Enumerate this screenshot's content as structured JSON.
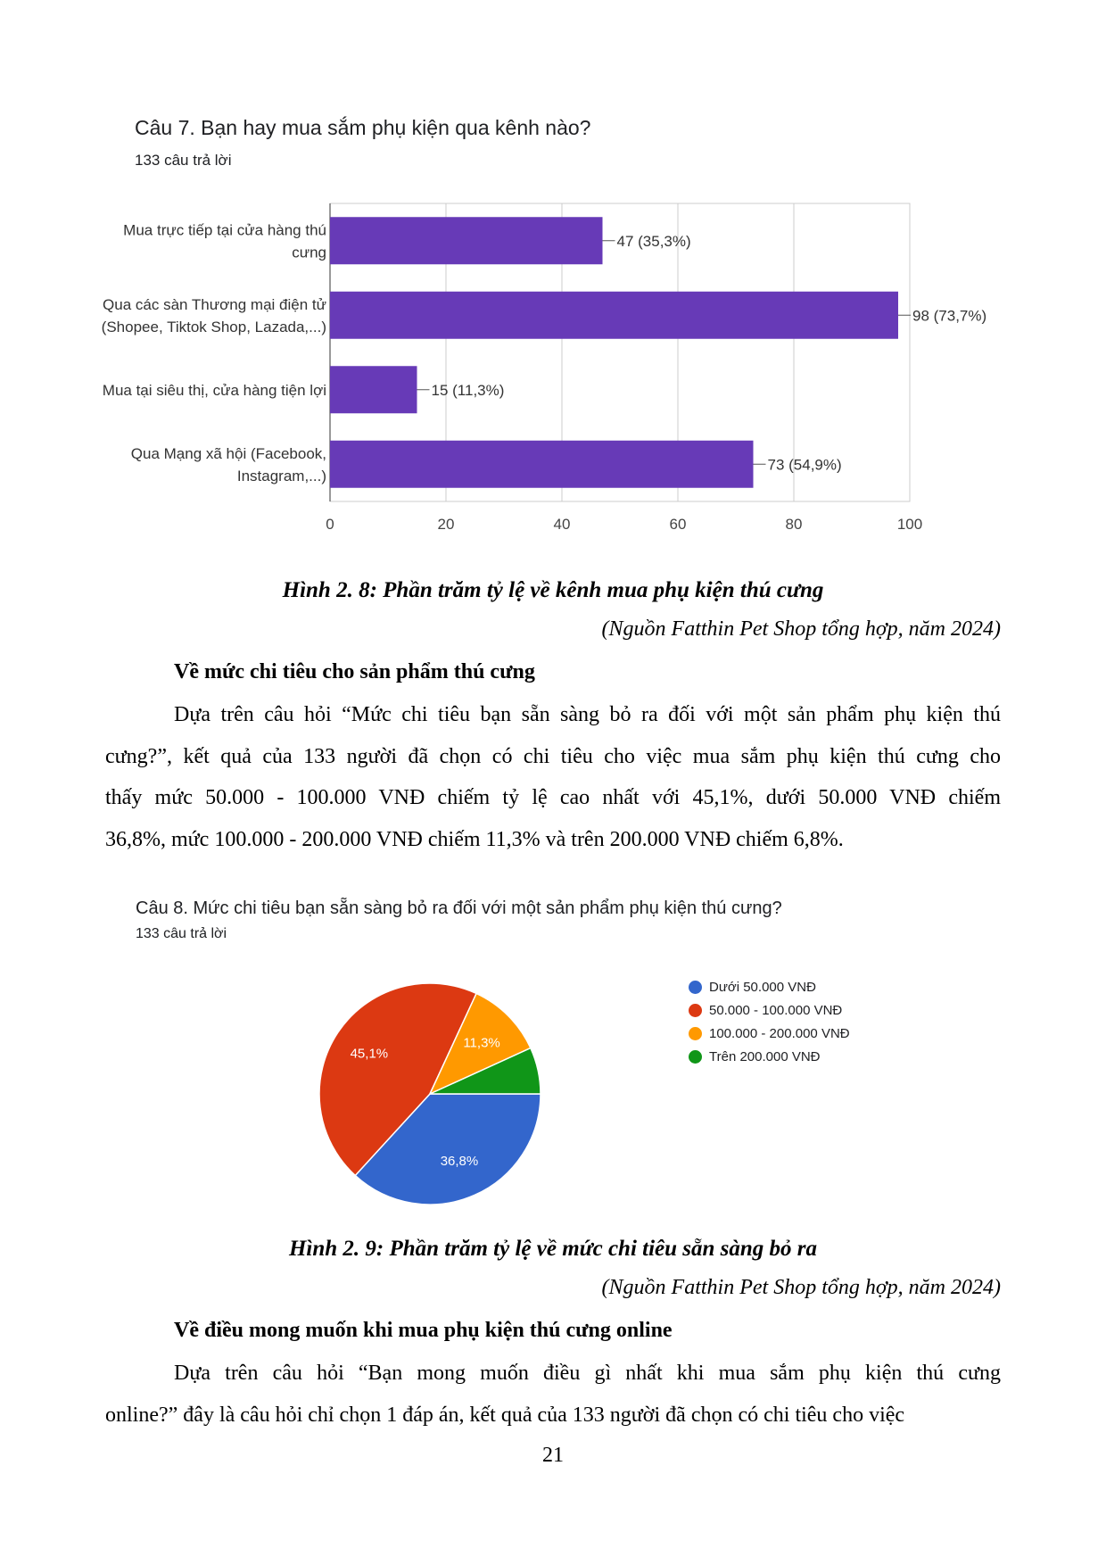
{
  "chart1": {
    "title": "Câu 7. Bạn hay mua sắm phụ kiện qua kênh nào?",
    "subtitle": "133 câu trả lời",
    "chart_data": {
      "type": "bar",
      "orientation": "horizontal",
      "categories": [
        [
          "Mua trực tiếp tại cửa hàng thú",
          "cưng"
        ],
        [
          "Qua các sàn Thương mại điện tử",
          "(Shopee, Tiktok Shop, Lazada,...)"
        ],
        [
          "Mua tại siêu thị, cửa hàng tiện lợi"
        ],
        [
          "Qua Mạng xã hội (Facebook,",
          "Instagram,...)"
        ]
      ],
      "values": [
        47,
        98,
        15,
        73
      ],
      "data_labels": [
        "47 (35,3%)",
        "98 (73,7%)",
        "15 (11,3%)",
        "73 (54,9%)"
      ],
      "xlim": [
        0,
        100
      ],
      "xticks": [
        "0",
        "20",
        "40",
        "60",
        "80",
        "100"
      ],
      "bar_color": "#673ab7",
      "grid": true
    }
  },
  "caption1": "Hình 2. 8: Phần trăm tỷ lệ về kênh mua phụ kiện thú cưng",
  "source1": "(Nguồn Fatthin Pet Shop tổng hợp, năm 2024)",
  "heading1": "Về mức chi tiêu cho sản phẩm thú cưng",
  "para1": [
    "Dựa trên câu hỏi “Mức chi tiêu bạn sẵn sàng bỏ ra đối với một sản phẩm phụ kiện thú",
    "cưng?”, kết quả của 133 người đã chọn có chi tiêu cho việc mua sắm phụ kiện thú cưng cho",
    "thấy mức 50.000 - 100.000 VNĐ chiếm tỷ lệ cao nhất với 45,1%, dưới 50.000 VNĐ chiếm",
    "36,8%, mức 100.000 - 200.000 VNĐ chiếm 11,3% và trên 200.000 VNĐ chiếm 6,8%."
  ],
  "chart2": {
    "title": "Câu 8. Mức chi tiêu bạn sẵn sàng bỏ ra đối với một sản phẩm phụ kiện thú cưng?",
    "subtitle": "133 câu trả lời",
    "chart_data": {
      "type": "pie",
      "slices": [
        {
          "label": "Dưới 50.000 VNĐ",
          "value": 36.8,
          "display": "36,8%",
          "color": "#3366cc"
        },
        {
          "label": "50.000 - 100.000 VNĐ",
          "value": 45.1,
          "display": "45,1%",
          "color": "#dc3912"
        },
        {
          "label": "100.000 - 200.000 VNĐ",
          "value": 11.3,
          "display": "11,3%",
          "color": "#ff9900"
        },
        {
          "label": "Trên 200.000 VNĐ",
          "value": 6.8,
          "display": "",
          "color": "#109618"
        }
      ],
      "legend_position": "right"
    }
  },
  "caption2": "Hình 2. 9: Phần trăm tỷ lệ về mức chi tiêu sẵn sàng bỏ ra",
  "source2": "(Nguồn Fatthin Pet Shop tổng hợp, năm 2024)",
  "heading2": "Về điều mong muốn khi mua phụ kiện thú cưng online",
  "para2": [
    "Dựa trên câu hỏi “Bạn mong muốn điều gì nhất khi mua sắm phụ kiện thú cưng",
    "online?” đây là câu hỏi chỉ chọn 1 đáp án, kết quả của 133 người đã chọn có chi tiêu cho việc"
  ],
  "page_number": "21"
}
